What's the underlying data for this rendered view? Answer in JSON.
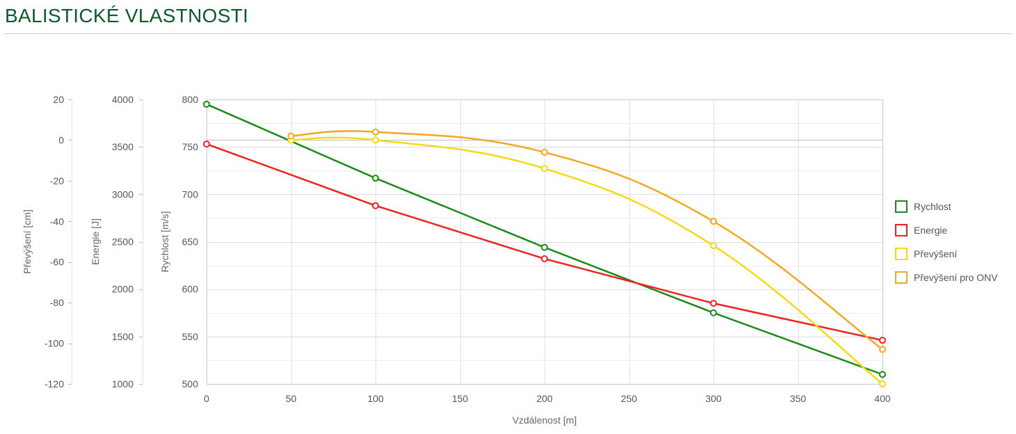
{
  "page": {
    "title": "BALISTICKÉ VLASTNOSTI"
  },
  "chart_data": {
    "type": "line",
    "title": "",
    "xlabel": "Vzdálenost [m]",
    "xlim": [
      0,
      400
    ],
    "x_ticks": [
      0,
      50,
      100,
      150,
      200,
      250,
      300,
      350,
      400
    ],
    "grid": true,
    "legend_position": "right",
    "y_axes": [
      {
        "id": "drop",
        "label": "Převýšení [cm]",
        "ylim": [
          -120,
          20
        ],
        "ticks": [
          20,
          0,
          -20,
          -40,
          -60,
          -80,
          -100,
          -120
        ]
      },
      {
        "id": "energy",
        "label": "Energie [J]",
        "ylim": [
          1000,
          4000
        ],
        "ticks": [
          4000,
          3500,
          3000,
          2500,
          2000,
          1500,
          1000
        ]
      },
      {
        "id": "velocity",
        "label": "Rychlost [m/s]",
        "ylim": [
          500,
          800
        ],
        "ticks": [
          800,
          750,
          700,
          650,
          600,
          550,
          500
        ]
      }
    ],
    "series": [
      {
        "name": "Rychlost",
        "axis": "velocity",
        "color": "#1a8a1a",
        "smooth": false,
        "x": [
          0,
          100,
          200,
          300,
          400
        ],
        "y": [
          795,
          717,
          644,
          575,
          510
        ]
      },
      {
        "name": "Energie",
        "axis": "energy",
        "color": "#ee2222",
        "smooth": false,
        "x": [
          0,
          100,
          200,
          300,
          400
        ],
        "y": [
          3530,
          2880,
          2320,
          1850,
          1460
        ]
      },
      {
        "name": "Převýšení",
        "axis": "drop",
        "color": "#f5d915",
        "smooth": true,
        "x": [
          50,
          100,
          200,
          300,
          400
        ],
        "y": [
          0,
          0,
          -14,
          -52,
          -120
        ]
      },
      {
        "name": "Převýšení pro ONV",
        "axis": "drop",
        "color": "#f5a623",
        "smooth": true,
        "x": [
          50,
          100,
          200,
          300,
          400
        ],
        "y": [
          2,
          4,
          -6,
          -40,
          -103
        ]
      }
    ],
    "reference_line": {
      "axis": "drop",
      "value": 0,
      "color": "#bfbfbf"
    }
  }
}
